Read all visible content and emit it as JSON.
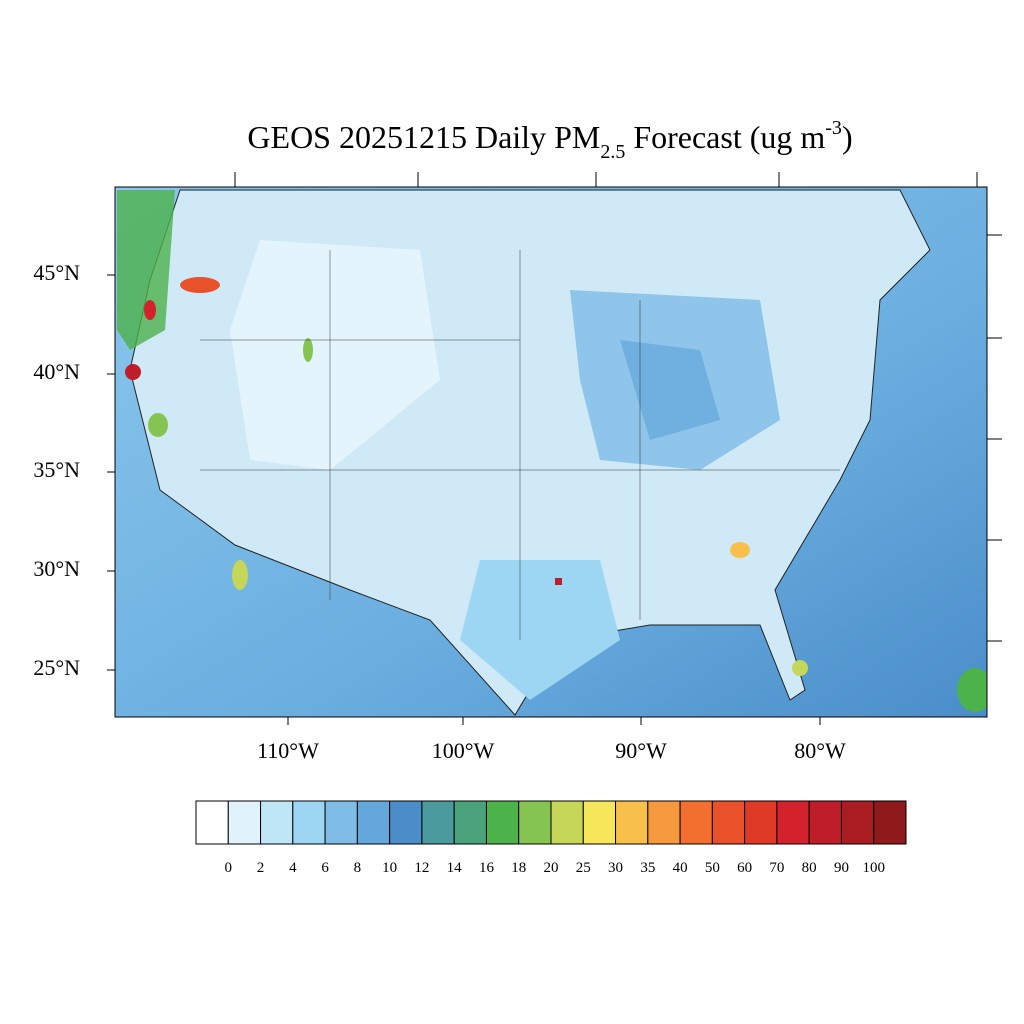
{
  "title": {
    "main": "GEOS 20251215 Daily PM",
    "sub": "2.5",
    "rest": " Forecast (ug m",
    "sup": "-3",
    "end": ")"
  },
  "lat_labels": [
    "45°N",
    "40°N",
    "35°N",
    "30°N",
    "25°N"
  ],
  "lon_labels": [
    "110°W",
    "100°W",
    "90°W",
    "80°W"
  ],
  "colorbar": {
    "levels": [
      0,
      2,
      4,
      6,
      8,
      10,
      12,
      14,
      16,
      18,
      20,
      25,
      30,
      35,
      40,
      50,
      60,
      70,
      80,
      90,
      100
    ],
    "colors": [
      "#ffffff",
      "#e0f3fb",
      "#bfe6f7",
      "#9dd6f3",
      "#7fbde6",
      "#64a7db",
      "#4a8dc9",
      "#4a9a9e",
      "#4aa37a",
      "#4cb24a",
      "#86c452",
      "#c5d658",
      "#f6e65a",
      "#f8c04a",
      "#f5983e",
      "#f26f30",
      "#e8512a",
      "#de3a26",
      "#d4222c",
      "#c01d2a",
      "#a81c22",
      "#8e1a1c"
    ]
  }
}
